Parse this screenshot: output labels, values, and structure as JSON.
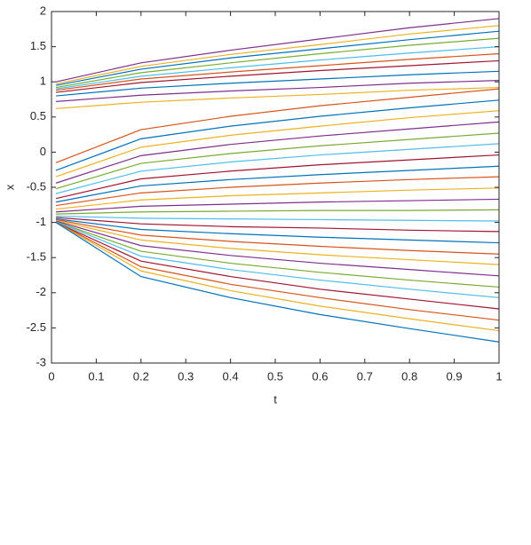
{
  "chart_data": {
    "type": "line",
    "xlabel": "t",
    "ylabel": "x",
    "x": [
      0.01,
      0.2,
      0.4,
      0.6,
      0.8,
      1
    ],
    "xlim": [
      0,
      1
    ],
    "xticks": [
      0,
      0.1,
      0.2,
      0.3,
      0.4,
      0.5,
      0.6,
      0.7,
      0.8,
      0.9,
      1
    ],
    "ylim": [
      -3,
      2
    ],
    "yticks": [
      -3,
      -2.5,
      -2,
      -1.5,
      -1,
      -0.5,
      0,
      0.5,
      1,
      1.5,
      2
    ],
    "grid": false,
    "series": [
      {
        "color": "#7E2F8E",
        "values": [
          1.0,
          1.27,
          1.45,
          1.61,
          1.77,
          1.9
        ]
      },
      {
        "color": "#EDB120",
        "values": [
          0.97,
          1.22,
          1.39,
          1.53,
          1.68,
          1.8
        ]
      },
      {
        "color": "#0072BD",
        "values": [
          0.95,
          1.18,
          1.34,
          1.47,
          1.6,
          1.72
        ]
      },
      {
        "color": "#77AC30",
        "values": [
          0.92,
          1.13,
          1.27,
          1.4,
          1.52,
          1.62
        ]
      },
      {
        "color": "#4DBEEE",
        "values": [
          0.9,
          1.08,
          1.2,
          1.31,
          1.41,
          1.5
        ]
      },
      {
        "color": "#D95319",
        "values": [
          0.88,
          1.04,
          1.14,
          1.23,
          1.32,
          1.4
        ]
      },
      {
        "color": "#A2142F",
        "values": [
          0.85,
          0.99,
          1.08,
          1.16,
          1.23,
          1.3
        ]
      },
      {
        "color": "#0072BD",
        "values": [
          0.8,
          0.91,
          0.98,
          1.04,
          1.1,
          1.15
        ]
      },
      {
        "color": "#7E2F8E",
        "values": [
          0.72,
          0.81,
          0.87,
          0.92,
          0.98,
          1.02
        ]
      },
      {
        "color": "#EDB120",
        "values": [
          0.62,
          0.71,
          0.77,
          0.82,
          0.88,
          0.92
        ]
      },
      {
        "color": "#D95319",
        "values": [
          -0.15,
          0.32,
          0.51,
          0.66,
          0.78,
          0.9
        ]
      },
      {
        "color": "#0072BD",
        "values": [
          -0.26,
          0.19,
          0.37,
          0.51,
          0.63,
          0.74
        ]
      },
      {
        "color": "#EDB120",
        "values": [
          -0.35,
          0.07,
          0.24,
          0.37,
          0.49,
          0.59
        ]
      },
      {
        "color": "#7E2F8E",
        "values": [
          -0.44,
          -0.05,
          0.11,
          0.23,
          0.33,
          0.43
        ]
      },
      {
        "color": "#77AC30",
        "values": [
          -0.52,
          -0.16,
          -0.02,
          0.09,
          0.18,
          0.27
        ]
      },
      {
        "color": "#4DBEEE",
        "values": [
          -0.59,
          -0.27,
          -0.14,
          -0.04,
          0.04,
          0.12
        ]
      },
      {
        "color": "#A2142F",
        "values": [
          -0.66,
          -0.38,
          -0.27,
          -0.18,
          -0.11,
          -0.04
        ]
      },
      {
        "color": "#0072BD",
        "values": [
          -0.71,
          -0.48,
          -0.39,
          -0.32,
          -0.26,
          -0.2
        ]
      },
      {
        "color": "#D95319",
        "values": [
          -0.76,
          -0.58,
          -0.5,
          -0.44,
          -0.39,
          -0.35
        ]
      },
      {
        "color": "#EDB120",
        "values": [
          -0.81,
          -0.68,
          -0.62,
          -0.58,
          -0.54,
          -0.51
        ]
      },
      {
        "color": "#7E2F8E",
        "values": [
          -0.85,
          -0.77,
          -0.74,
          -0.71,
          -0.69,
          -0.67
        ]
      },
      {
        "color": "#77AC30",
        "values": [
          -0.88,
          -0.85,
          -0.84,
          -0.83,
          -0.83,
          -0.82
        ]
      },
      {
        "color": "#4DBEEE",
        "values": [
          -0.91,
          -0.94,
          -0.95,
          -0.96,
          -0.97,
          -0.98
        ]
      },
      {
        "color": "#A2142F",
        "values": [
          -0.93,
          -1.02,
          -1.06,
          -1.08,
          -1.11,
          -1.13
        ]
      },
      {
        "color": "#0072BD",
        "values": [
          -0.95,
          -1.1,
          -1.16,
          -1.21,
          -1.25,
          -1.29
        ]
      },
      {
        "color": "#D95319",
        "values": [
          -0.96,
          -1.18,
          -1.27,
          -1.34,
          -1.4,
          -1.45
        ]
      },
      {
        "color": "#EDB120",
        "values": [
          -0.97,
          -1.25,
          -1.37,
          -1.46,
          -1.53,
          -1.6
        ]
      },
      {
        "color": "#7E2F8E",
        "values": [
          -0.98,
          -1.33,
          -1.47,
          -1.58,
          -1.67,
          -1.76
        ]
      },
      {
        "color": "#77AC30",
        "values": [
          -0.99,
          -1.41,
          -1.58,
          -1.71,
          -1.82,
          -1.92
        ]
      },
      {
        "color": "#4DBEEE",
        "values": [
          -0.99,
          -1.48,
          -1.67,
          -1.82,
          -1.95,
          -2.07
        ]
      },
      {
        "color": "#A2142F",
        "values": [
          -1.0,
          -1.55,
          -1.77,
          -1.95,
          -2.09,
          -2.23
        ]
      },
      {
        "color": "#D95319",
        "values": [
          -1.0,
          -1.63,
          -1.88,
          -2.07,
          -2.24,
          -2.39
        ]
      },
      {
        "color": "#EDB120",
        "values": [
          -1.0,
          -1.69,
          -1.97,
          -2.19,
          -2.37,
          -2.54
        ]
      },
      {
        "color": "#0072BD",
        "values": [
          -1.0,
          -1.77,
          -2.07,
          -2.31,
          -2.51,
          -2.7
        ]
      }
    ]
  }
}
